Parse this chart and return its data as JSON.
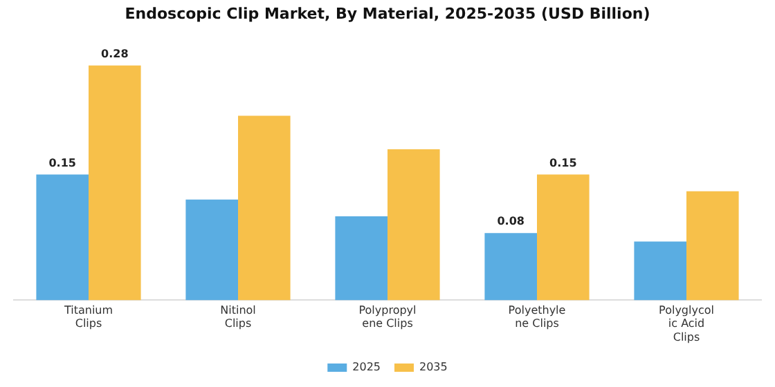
{
  "chart_data": {
    "type": "bar",
    "title": "Endoscopic Clip Market, By Material, 2025-2035 (USD Billion)",
    "categories": [
      "Titanium Clips",
      "Nitinol Clips",
      "Polypropylene Clips",
      "Polyethylene Clips",
      "Polyglycolic Acid Clips"
    ],
    "series": [
      {
        "name": "2025",
        "color": "#5aade2",
        "values": [
          0.15,
          0.12,
          0.1,
          0.08,
          0.07
        ],
        "value_labels": [
          "0.15",
          null,
          null,
          "0.08",
          null
        ]
      },
      {
        "name": "2035",
        "color": "#f7c04a",
        "values": [
          0.28,
          0.22,
          0.18,
          0.15,
          0.13
        ],
        "value_labels": [
          "0.28",
          null,
          null,
          "0.15",
          null
        ]
      }
    ],
    "legend": "bottom",
    "grid": false
  }
}
